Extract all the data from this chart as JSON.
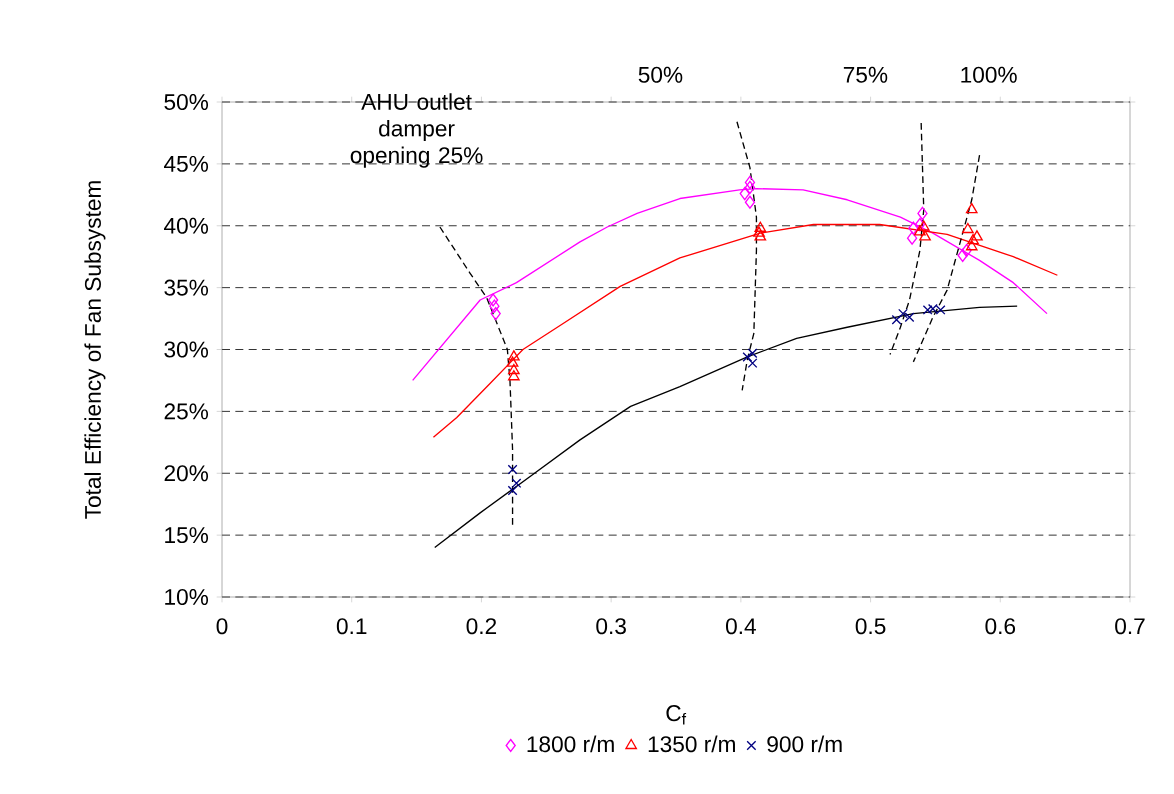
{
  "chart_data": {
    "type": "scatter",
    "xlabel": "C$_{f}$",
    "ylabel": "Total Efficiency of Fan Subsystem",
    "xlim": [
      0,
      0.7
    ],
    "xticks": [
      0,
      0.1,
      0.2,
      0.3,
      0.4,
      0.5,
      0.6,
      0.7
    ],
    "ylim": [
      10,
      50
    ],
    "yticks": [
      {
        "value": 10,
        "label": "10%"
      },
      {
        "value": 15,
        "label": "15%"
      },
      {
        "value": 20,
        "label": "20%"
      },
      {
        "value": 25,
        "label": "25%"
      },
      {
        "value": 30,
        "label": "30%"
      },
      {
        "value": 35,
        "label": "35%"
      },
      {
        "value": 40,
        "label": "40%"
      },
      {
        "value": 45,
        "label": "45%"
      },
      {
        "value": 50,
        "label": "50%"
      }
    ],
    "grid": "y",
    "legend": "bottom",
    "annotations": [
      "AHU outlet damper opening 25%",
      "50%",
      "75%",
      "100%"
    ],
    "series": [
      {
        "type": "line",
        "color": "#ff00ff",
        "marker": "none",
        "line_style": "solid",
        "x": [
          0.147,
          0.199,
          0.227,
          0.276,
          0.297,
          0.32,
          0.353,
          0.399,
          0.412,
          0.448,
          0.482,
          0.523,
          0.548,
          0.584,
          0.61,
          0.636
        ],
        "values": [
          27.5,
          34.0,
          35.4,
          38.7,
          39.9,
          41.0,
          42.2,
          42.9,
          43.0,
          42.9,
          42.1,
          40.7,
          39.4,
          37.2,
          35.4,
          32.9
        ]
      },
      {
        "type": "line",
        "color": "#ff0000",
        "marker": "none",
        "line_style": "solid",
        "x": [
          0.163,
          0.181,
          0.207,
          0.232,
          0.263,
          0.307,
          0.353,
          0.415,
          0.456,
          0.507,
          0.559,
          0.61,
          0.644
        ],
        "values": [
          22.9,
          24.5,
          27.3,
          30.0,
          32.1,
          35.1,
          37.4,
          39.4,
          40.1,
          40.1,
          39.3,
          37.5,
          36.0
        ]
      },
      {
        "type": "line",
        "color": "#000000",
        "marker": "none",
        "line_style": "solid",
        "x": [
          0.164,
          0.199,
          0.237,
          0.276,
          0.315,
          0.353,
          0.405,
          0.443,
          0.482,
          0.533,
          0.584,
          0.613
        ],
        "values": [
          14.0,
          16.8,
          19.7,
          22.7,
          25.4,
          27.0,
          29.4,
          30.9,
          31.8,
          32.9,
          33.4,
          33.5
        ]
      },
      {
        "type": "line",
        "color": "#000000",
        "marker": "none",
        "line_style": "dashed",
        "x": [
          0.168,
          0.191,
          0.204,
          0.212,
          0.22,
          0.222,
          0.224,
          0.224
        ],
        "values": [
          39.9,
          36.2,
          34.2,
          32.1,
          30.0,
          27.5,
          21.9,
          15.7
        ]
      },
      {
        "type": "line",
        "color": "#000000",
        "marker": "none",
        "line_style": "dashed",
        "x": [
          0.397,
          0.407,
          0.412,
          0.412,
          0.41,
          0.405,
          0.401
        ],
        "values": [
          48.4,
          44.7,
          40.7,
          38.0,
          31.3,
          29.2,
          26.7
        ]
      },
      {
        "type": "line",
        "color": "#000000",
        "marker": "none",
        "line_style": "dashed",
        "x": [
          0.539,
          0.541,
          0.538,
          0.53,
          0.523,
          0.515
        ],
        "values": [
          48.3,
          41.3,
          38.0,
          34.0,
          31.8,
          29.6
        ]
      },
      {
        "type": "line",
        "color": "#000000",
        "marker": "none",
        "line_style": "dashed",
        "x": [
          0.584,
          0.578,
          0.571,
          0.559,
          0.548,
          0.533
        ],
        "values": [
          45.7,
          42.1,
          39.4,
          34.8,
          32.6,
          29.0
        ]
      },
      {
        "name": "1800 r/m",
        "color": "#ff00ff",
        "marker": "diamond",
        "x": [
          0.209,
          0.21,
          0.211,
          0.407,
          0.407,
          0.407,
          0.403,
          0.54,
          0.533,
          0.532,
          0.538,
          0.571,
          0.574
        ],
        "values": [
          34.0,
          33.5,
          32.9,
          43.5,
          43.1,
          41.9,
          42.6,
          41.0,
          39.8,
          39.0,
          40.1,
          37.6,
          38.0
        ]
      },
      {
        "name": "1350 r/m",
        "color": "#ff0000",
        "marker": "triangle",
        "x": [
          0.225,
          0.225,
          0.225,
          0.224,
          0.415,
          0.415,
          0.414,
          0.541,
          0.542,
          0.538,
          0.578,
          0.575,
          0.579,
          0.582,
          0.578
        ],
        "values": [
          29.4,
          28.3,
          27.8,
          28.9,
          39.8,
          39.1,
          39.4,
          39.9,
          39.1,
          39.5,
          41.3,
          39.7,
          38.8,
          39.1,
          38.3
        ]
      },
      {
        "name": "900 r/m",
        "color": "#000080",
        "marker": "cross",
        "x": [
          0.224,
          0.227,
          0.224,
          0.409,
          0.409,
          0.405,
          0.525,
          0.52,
          0.53,
          0.548,
          0.544,
          0.554
        ],
        "values": [
          20.3,
          19.2,
          18.6,
          29.7,
          28.9,
          29.4,
          32.9,
          32.4,
          32.6,
          33.3,
          33.2,
          33.2
        ]
      }
    ]
  }
}
